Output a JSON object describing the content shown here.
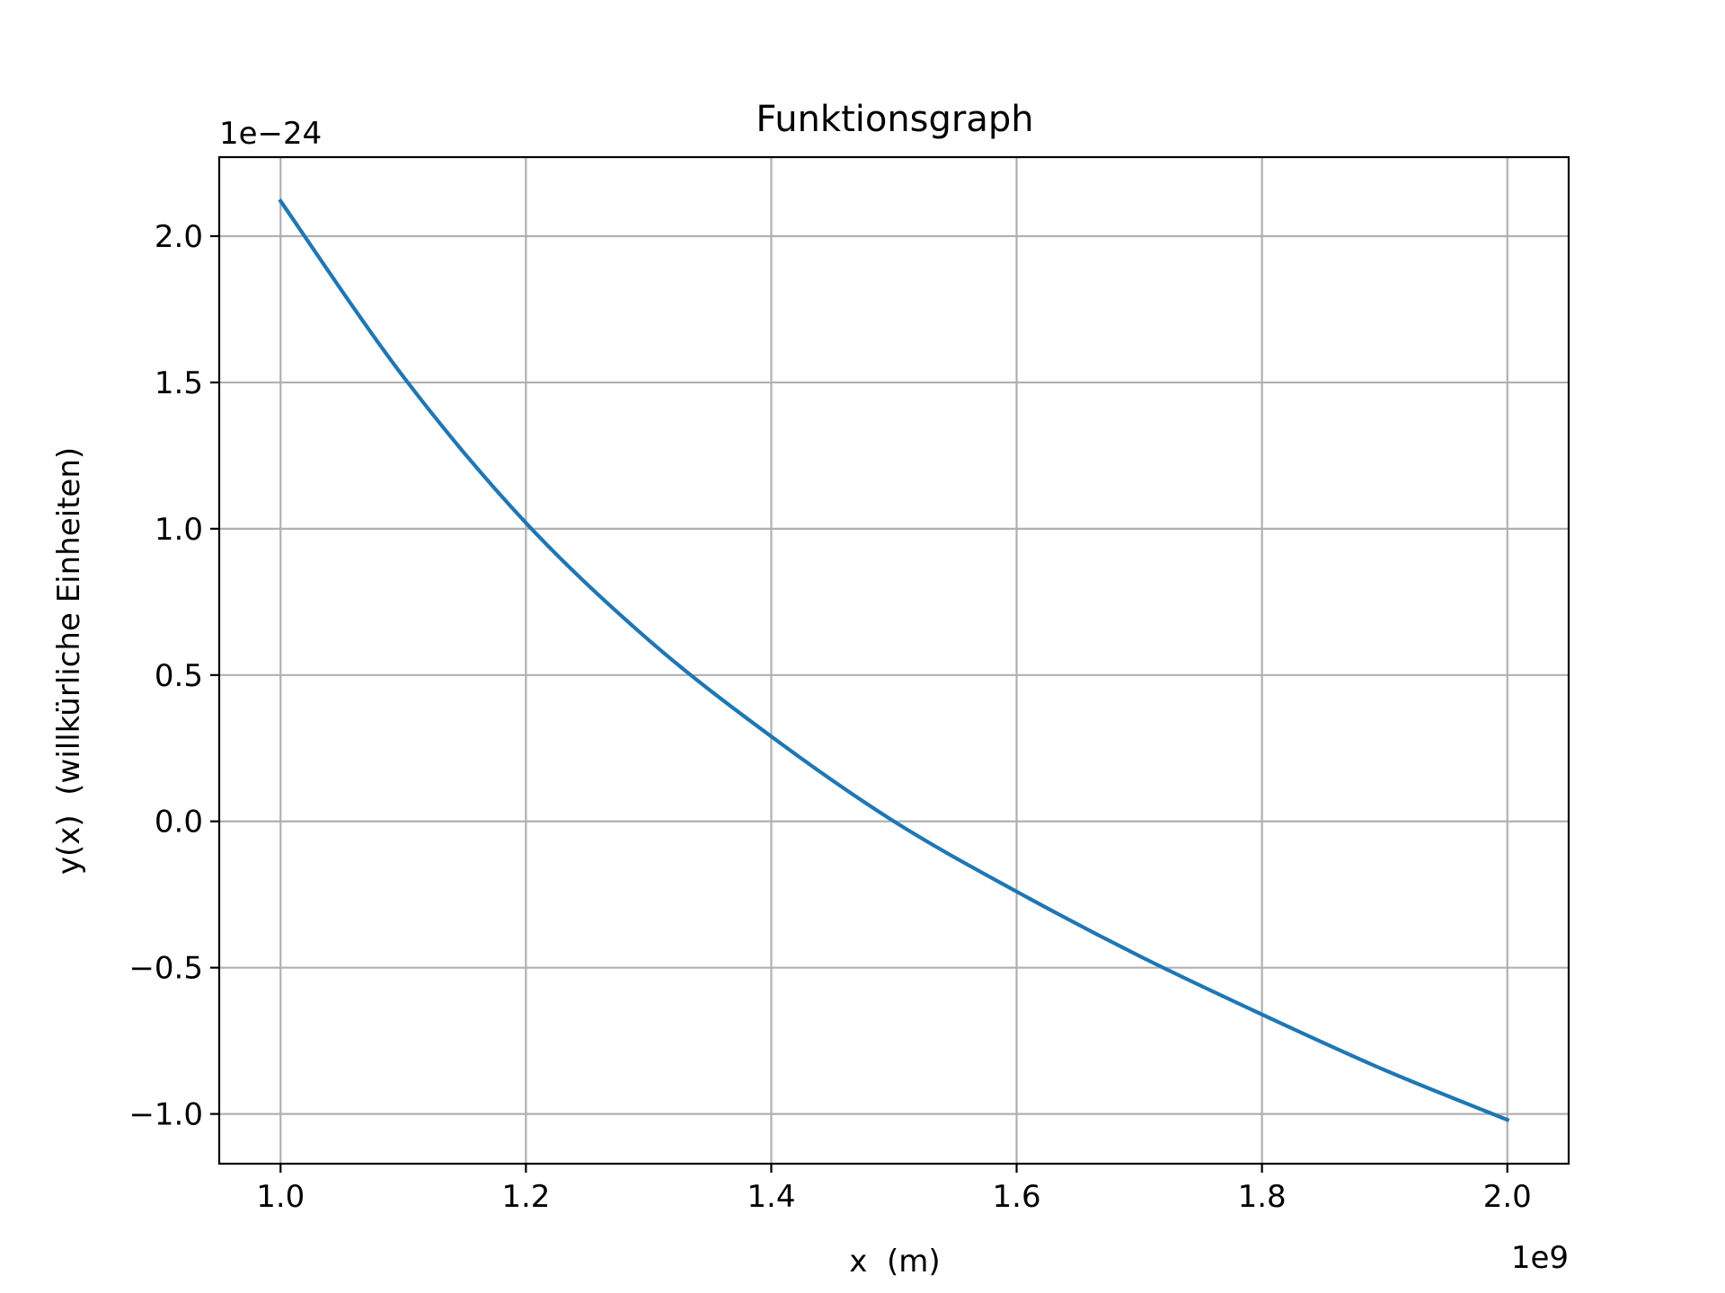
{
  "chart_data": {
    "type": "line",
    "title": "Funktionsgraph",
    "xlabel": "x  (m)",
    "ylabel": "y(x)  (willkürliche Einheiten)",
    "x_offset_text": "1e9",
    "y_offset_text": "1e−24",
    "xlim": [
      950000000.0,
      2050000000.0
    ],
    "ylim": [
      -1.17e-24,
      2.27e-24
    ],
    "x_ticks": [
      1000000000.0,
      1200000000.0,
      1400000000.0,
      1600000000.0,
      1800000000.0,
      2000000000.0
    ],
    "x_tick_labels": [
      "1.0",
      "1.2",
      "1.4",
      "1.6",
      "1.8",
      "2.0"
    ],
    "y_ticks": [
      -1e-24,
      -5e-25,
      0.0,
      5e-25,
      1e-24,
      1.5e-24,
      2e-24
    ],
    "y_tick_labels": [
      "−1.0",
      "−0.5",
      "0.0",
      "0.5",
      "1.0",
      "1.5",
      "2.0"
    ],
    "grid": true,
    "colors": {
      "series": "#1f77b4",
      "grid": "#b0b0b0",
      "axes": "#000000"
    },
    "series": [
      {
        "x": [
          1000000000.0,
          1100000000.0,
          1200000000.0,
          1300000000.0,
          1400000000.0,
          1500000000.0,
          1600000000.0,
          1700000000.0,
          1800000000.0,
          1900000000.0,
          2000000000.0
        ],
        "y": [
          2.12e-24,
          1.52e-24,
          1.02e-24,
          6.2e-25,
          2.9e-25,
          0.0,
          -2.4e-25,
          -4.6e-25,
          -6.6e-25,
          -8.5e-25,
          -1.02e-24
        ]
      }
    ]
  }
}
